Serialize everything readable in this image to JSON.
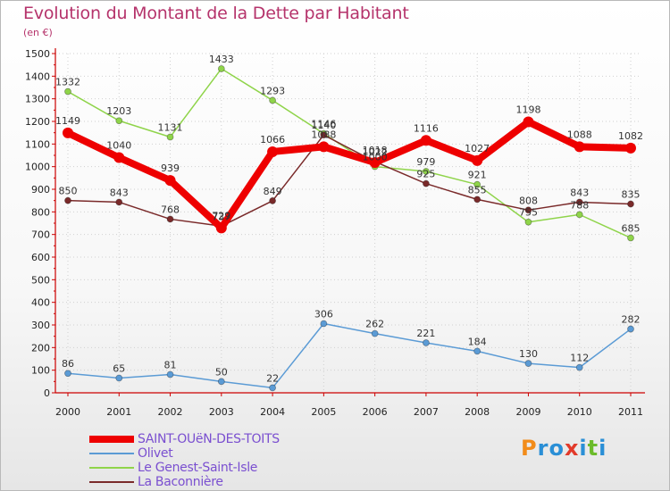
{
  "header": {
    "title": "Evolution du Montant de la Dette par Habitant",
    "subtitle": "(en €)"
  },
  "colors": {
    "title": "#b5336b",
    "axis": "#cc0000",
    "legend_text": "#7a4fd0"
  },
  "brand": {
    "text": "Proxiti",
    "letters": [
      {
        "ch": "P",
        "color": "#f28c1a"
      },
      {
        "ch": "r",
        "color": "#2a8fd6"
      },
      {
        "ch": "o",
        "color": "#2a8fd6"
      },
      {
        "ch": "x",
        "color": "#e23a2a"
      },
      {
        "ch": "i",
        "color": "#2a8fd6"
      },
      {
        "ch": "t",
        "color": "#6cbb2a"
      },
      {
        "ch": "i",
        "color": "#2a8fd6"
      }
    ]
  },
  "chart_data": {
    "type": "line",
    "title": "Evolution du Montant de la Dette par Habitant",
    "subtitle": "(en €)",
    "xlabel": "",
    "ylabel": "",
    "x": [
      "2000",
      "2001",
      "2002",
      "2003",
      "2004",
      "2005",
      "2006",
      "2007",
      "2008",
      "2009",
      "2010",
      "2011"
    ],
    "ylim": [
      0,
      1500
    ],
    "yticks": [
      "0",
      "100",
      "200",
      "300",
      "400",
      "500",
      "600",
      "700",
      "800",
      "900",
      "1000",
      "1100",
      "1200",
      "1300",
      "1400",
      "1500"
    ],
    "grid": true,
    "legend_position": "bottom-left",
    "series": [
      {
        "name": "SAINT-OUëN-DES-TOITS",
        "color": "#ee0000",
        "width": 8,
        "marker": 6,
        "values": [
          1149,
          1040,
          939,
          729,
          1066,
          1088,
          1018,
          1116,
          1027,
          1198,
          1088,
          1082
        ],
        "labels": [
          "1149",
          "1040",
          "939",
          "729",
          "1066",
          "1088",
          "1018",
          "1116",
          "1027",
          "1198",
          "1088",
          "1082"
        ]
      },
      {
        "name": "Olivet",
        "color": "#5b9bd5",
        "width": 1.5,
        "marker": 3.5,
        "values": [
          86,
          65,
          81,
          50,
          22,
          306,
          262,
          221,
          184,
          130,
          112,
          282
        ],
        "labels": [
          "86",
          "65",
          "81",
          "50",
          "22",
          "306",
          "262",
          "221",
          "184",
          "130",
          "112",
          "282"
        ]
      },
      {
        "name": "Le Genest-Saint-Isle",
        "color": "#8fd44a",
        "width": 1.5,
        "marker": 3.5,
        "values": [
          1332,
          1203,
          1131,
          1433,
          1293,
          1146,
          1000,
          979,
          921,
          755,
          788,
          685
        ],
        "labels": [
          "1332",
          "1203",
          "1131",
          "1433",
          "1293",
          "1146",
          "1000",
          "979",
          "921",
          "755",
          "788",
          "685"
        ]
      },
      {
        "name": "La Baconnière",
        "color": "#7a2a2a",
        "width": 1.5,
        "marker": 3.5,
        "values": [
          850,
          843,
          768,
          737,
          849,
          1140,
          1022,
          925,
          855,
          808,
          843,
          835
        ],
        "labels": [
          "850",
          "843",
          "768",
          "737",
          "849",
          "1140",
          "1022",
          "925",
          "855",
          "808",
          "843",
          "835"
        ]
      }
    ]
  }
}
